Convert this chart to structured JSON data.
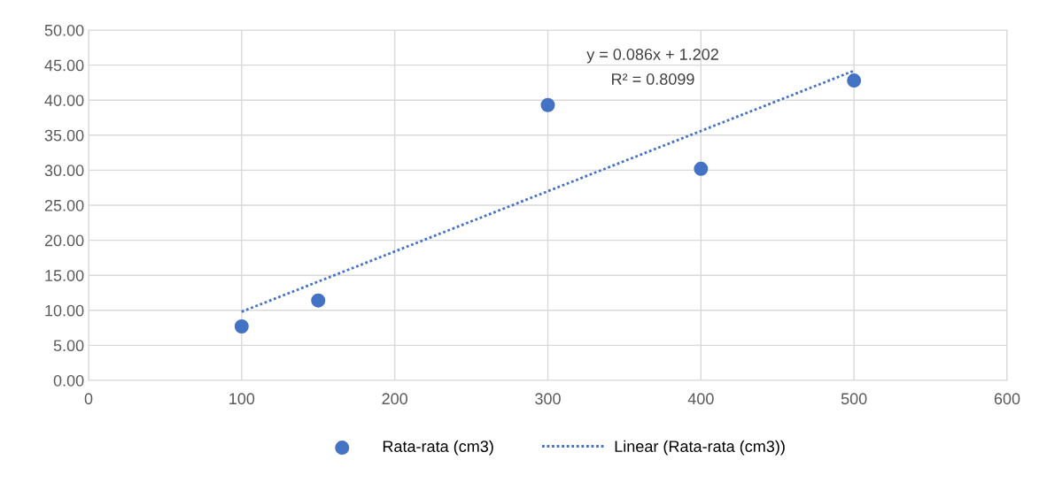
{
  "chart_data": {
    "type": "scatter",
    "xlim": [
      0,
      600
    ],
    "xticks": [
      0,
      100,
      200,
      300,
      400,
      500,
      600
    ],
    "ylim": [
      0,
      50
    ],
    "yticks": [
      {
        "value": 0,
        "label": "0.00"
      },
      {
        "value": 5,
        "label": "5.00"
      },
      {
        "value": 10,
        "label": "10.00"
      },
      {
        "value": 15,
        "label": "15.00"
      },
      {
        "value": 20,
        "label": "20.00"
      },
      {
        "value": 25,
        "label": "25.00"
      },
      {
        "value": 30,
        "label": "30.00"
      },
      {
        "value": 35,
        "label": "35.00"
      },
      {
        "value": 40,
        "label": "40.00"
      },
      {
        "value": 45,
        "label": "45.00"
      },
      {
        "value": 50,
        "label": "50.00"
      }
    ],
    "grid": true,
    "legend": "bottom",
    "series": [
      {
        "name": "Rata-rata (cm3)",
        "color": "#4472c4",
        "marker": "circle",
        "x": [
          100,
          150,
          300,
          400,
          500
        ],
        "values": [
          7.7,
          11.4,
          39.3,
          30.2,
          42.8
        ]
      },
      {
        "name": "Linear (Rata-rata (cm3))",
        "type": "line",
        "color": "#4472c4",
        "line_style": "dotted",
        "marker": "none",
        "x": [
          100,
          500
        ],
        "values": [
          9.8,
          44.2
        ]
      }
    ],
    "annotations": [
      "y = 0.086x + 1.202",
      "R² = 0.8099"
    ]
  }
}
